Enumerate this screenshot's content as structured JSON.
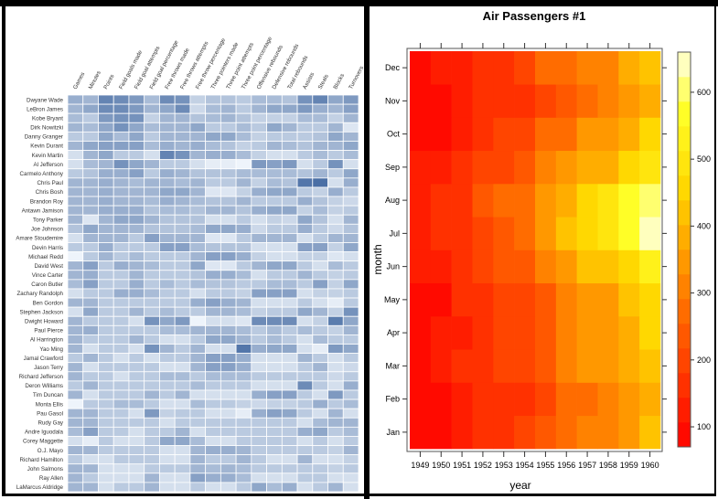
{
  "chart_data": [
    {
      "type": "heatmap",
      "title": "",
      "xlabel": "",
      "ylabel": "",
      "color_scale": {
        "low": "#f7fbff",
        "high": "#4a6fa5"
      },
      "value_range": [
        0,
        1
      ],
      "columns": [
        "Games",
        "Minutes",
        "Points",
        "Field goals made",
        "Field goal attempts",
        "Field goal percentage",
        "Free throws made",
        "Free throws attempts",
        "Free throw percentage",
        "Three pointers made",
        "Three point attempts",
        "Three point percentage",
        "Offensive rebounds",
        "Defensive rebounds",
        "Total rebounds",
        "Assists",
        "Steals",
        "Blocks",
        "Turnovers"
      ],
      "rows": [
        "Dwyane Wade",
        "LeBron James",
        "Kobe Bryant",
        "Dirk Nowitzki",
        "Danny Granger",
        "Kevin Durant",
        "Kevin Martin",
        "Al Jefferson",
        "Carmelo Anthony",
        "Chris Paul",
        "Chris Bosh",
        "Brandon Roy",
        "Antawn Jamison",
        "Tony Parker",
        "Joe Johnson",
        "Amare Stoudemire",
        "Devin Harris",
        "Michael Redd",
        "David West",
        "Vince Carter",
        "Caron Butler",
        "Zachary Randolph",
        "Ben Gordon",
        "Stephen Jackson",
        "Dwight Howard",
        "Paul Pierce",
        "Al Harrington",
        "Yao Ming",
        "Jamal Crawford",
        "Jason Terry",
        "Richard Jefferson",
        "Deron Williams",
        "Tim Duncan",
        "Monta Ellis",
        "Pau Gasol",
        "Rudy Gay",
        "Andre Iguodala",
        "Corey Maggette",
        "O.J. Mayo",
        "Richard Hamilton",
        "John Salmons",
        "Ray Allen",
        "LaMarcus Aldridge"
      ],
      "values": [
        [
          0.55,
          0.5,
          0.85,
          0.8,
          0.7,
          0.45,
          0.8,
          0.75,
          0.3,
          0.4,
          0.4,
          0.35,
          0.45,
          0.45,
          0.4,
          0.75,
          0.85,
          0.6,
          0.7
        ],
        [
          0.5,
          0.6,
          0.8,
          0.8,
          0.7,
          0.5,
          0.6,
          0.8,
          0.25,
          0.45,
          0.5,
          0.35,
          0.5,
          0.6,
          0.6,
          0.7,
          0.55,
          0.5,
          0.65
        ],
        [
          0.45,
          0.35,
          0.7,
          0.75,
          0.75,
          0.3,
          0.5,
          0.5,
          0.4,
          0.45,
          0.5,
          0.4,
          0.3,
          0.3,
          0.3,
          0.45,
          0.45,
          0.3,
          0.5
        ],
        [
          0.5,
          0.45,
          0.6,
          0.75,
          0.6,
          0.45,
          0.5,
          0.5,
          0.6,
          0.35,
          0.35,
          0.45,
          0.35,
          0.6,
          0.5,
          0.35,
          0.35,
          0.5,
          0.15
        ],
        [
          0.35,
          0.35,
          0.6,
          0.45,
          0.6,
          0.35,
          0.5,
          0.5,
          0.5,
          0.6,
          0.6,
          0.45,
          0.3,
          0.35,
          0.35,
          0.35,
          0.4,
          0.6,
          0.5
        ],
        [
          0.5,
          0.6,
          0.65,
          0.65,
          0.65,
          0.45,
          0.55,
          0.5,
          0.55,
          0.45,
          0.4,
          0.3,
          0.35,
          0.5,
          0.45,
          0.4,
          0.5,
          0.5,
          0.6
        ],
        [
          0.2,
          0.5,
          0.6,
          0.35,
          0.35,
          0.2,
          0.85,
          0.75,
          0.5,
          0.55,
          0.55,
          0.45,
          0.3,
          0.2,
          0.2,
          0.35,
          0.45,
          0.35,
          0.45
        ],
        [
          0.2,
          0.45,
          0.5,
          0.75,
          0.6,
          0.5,
          0.35,
          0.35,
          0.2,
          0.1,
          0.1,
          0.05,
          0.7,
          0.65,
          0.7,
          0.2,
          0.35,
          0.75,
          0.2
        ],
        [
          0.35,
          0.4,
          0.55,
          0.55,
          0.65,
          0.35,
          0.55,
          0.5,
          0.4,
          0.4,
          0.4,
          0.45,
          0.45,
          0.45,
          0.45,
          0.4,
          0.5,
          0.35,
          0.6
        ],
        [
          0.5,
          0.5,
          0.55,
          0.5,
          0.45,
          0.5,
          0.5,
          0.45,
          0.5,
          0.35,
          0.35,
          0.5,
          0.3,
          0.45,
          0.4,
          0.95,
          1.0,
          0.2,
          0.55
        ],
        [
          0.5,
          0.5,
          0.55,
          0.5,
          0.5,
          0.5,
          0.6,
          0.6,
          0.5,
          0.15,
          0.15,
          0.3,
          0.55,
          0.6,
          0.6,
          0.35,
          0.3,
          0.55,
          0.35
        ],
        [
          0.5,
          0.5,
          0.55,
          0.5,
          0.5,
          0.45,
          0.55,
          0.5,
          0.45,
          0.4,
          0.4,
          0.5,
          0.35,
          0.35,
          0.35,
          0.55,
          0.4,
          0.3,
          0.25
        ],
        [
          0.5,
          0.5,
          0.55,
          0.55,
          0.55,
          0.4,
          0.45,
          0.45,
          0.4,
          0.5,
          0.5,
          0.4,
          0.55,
          0.6,
          0.6,
          0.3,
          0.45,
          0.3,
          0.35
        ],
        [
          0.5,
          0.15,
          0.5,
          0.6,
          0.6,
          0.5,
          0.4,
          0.4,
          0.4,
          0.2,
          0.2,
          0.35,
          0.2,
          0.3,
          0.25,
          0.6,
          0.4,
          0.2,
          0.5
        ],
        [
          0.4,
          0.6,
          0.5,
          0.5,
          0.5,
          0.4,
          0.4,
          0.4,
          0.45,
          0.6,
          0.6,
          0.55,
          0.25,
          0.35,
          0.35,
          0.55,
          0.35,
          0.25,
          0.4
        ],
        [
          0.2,
          0.5,
          0.5,
          0.5,
          0.35,
          0.65,
          0.5,
          0.5,
          0.5,
          0.15,
          0.15,
          0.35,
          0.5,
          0.5,
          0.5,
          0.2,
          0.35,
          0.5,
          0.5
        ],
        [
          0.35,
          0.35,
          0.55,
          0.35,
          0.35,
          0.35,
          0.65,
          0.65,
          0.45,
          0.4,
          0.4,
          0.4,
          0.2,
          0.2,
          0.2,
          0.65,
          0.65,
          0.3,
          0.6
        ],
        [
          0.05,
          0.35,
          0.5,
          0.35,
          0.45,
          0.35,
          0.35,
          0.35,
          0.5,
          0.65,
          0.65,
          0.55,
          0.3,
          0.2,
          0.2,
          0.3,
          0.3,
          0.15,
          0.2
        ],
        [
          0.5,
          0.65,
          0.35,
          0.55,
          0.5,
          0.45,
          0.35,
          0.35,
          0.6,
          0.15,
          0.15,
          0.35,
          0.5,
          0.6,
          0.6,
          0.35,
          0.2,
          0.45,
          0.35
        ],
        [
          0.5,
          0.55,
          0.35,
          0.35,
          0.5,
          0.35,
          0.35,
          0.35,
          0.4,
          0.55,
          0.55,
          0.45,
          0.2,
          0.35,
          0.35,
          0.5,
          0.35,
          0.3,
          0.35
        ],
        [
          0.45,
          0.65,
          0.35,
          0.35,
          0.55,
          0.35,
          0.45,
          0.35,
          0.45,
          0.4,
          0.4,
          0.35,
          0.35,
          0.45,
          0.45,
          0.35,
          0.65,
          0.3,
          0.6
        ],
        [
          0.2,
          0.35,
          0.35,
          0.55,
          0.55,
          0.45,
          0.35,
          0.35,
          0.2,
          0.35,
          0.35,
          0.3,
          0.65,
          0.65,
          0.65,
          0.2,
          0.3,
          0.3,
          0.35
        ],
        [
          0.5,
          0.5,
          0.35,
          0.35,
          0.35,
          0.35,
          0.35,
          0.35,
          0.55,
          0.65,
          0.55,
          0.5,
          0.2,
          0.2,
          0.2,
          0.35,
          0.2,
          0.1,
          0.35
        ],
        [
          0.2,
          0.6,
          0.35,
          0.35,
          0.5,
          0.35,
          0.45,
          0.35,
          0.35,
          0.5,
          0.5,
          0.45,
          0.3,
          0.35,
          0.35,
          0.6,
          0.5,
          0.3,
          0.75
        ],
        [
          0.5,
          0.35,
          0.35,
          0.35,
          0.2,
          0.75,
          0.6,
          0.7,
          0.05,
          0.2,
          0.2,
          0.15,
          0.8,
          0.8,
          0.8,
          0.2,
          0.3,
          0.9,
          0.6
        ],
        [
          0.5,
          0.55,
          0.35,
          0.35,
          0.35,
          0.35,
          0.45,
          0.45,
          0.5,
          0.5,
          0.5,
          0.45,
          0.35,
          0.45,
          0.35,
          0.45,
          0.35,
          0.3,
          0.5
        ],
        [
          0.5,
          0.35,
          0.35,
          0.35,
          0.5,
          0.35,
          0.2,
          0.2,
          0.35,
          0.6,
          0.6,
          0.5,
          0.35,
          0.45,
          0.35,
          0.2,
          0.45,
          0.35,
          0.35
        ],
        [
          0.5,
          0.2,
          0.35,
          0.35,
          0.2,
          0.75,
          0.5,
          0.35,
          0.5,
          0.2,
          0.2,
          0.95,
          0.55,
          0.6,
          0.6,
          0.2,
          0.1,
          0.7,
          0.6
        ],
        [
          0.35,
          0.5,
          0.35,
          0.2,
          0.35,
          0.2,
          0.35,
          0.35,
          0.5,
          0.65,
          0.65,
          0.55,
          0.2,
          0.2,
          0.2,
          0.5,
          0.35,
          0.2,
          0.35
        ],
        [
          0.5,
          0.2,
          0.35,
          0.35,
          0.35,
          0.35,
          0.2,
          0.2,
          0.5,
          0.65,
          0.65,
          0.55,
          0.2,
          0.2,
          0.2,
          0.35,
          0.5,
          0.2,
          0.25
        ],
        [
          0.5,
          0.35,
          0.35,
          0.2,
          0.35,
          0.35,
          0.45,
          0.45,
          0.35,
          0.45,
          0.45,
          0.45,
          0.35,
          0.35,
          0.35,
          0.35,
          0.35,
          0.25,
          0.35
        ],
        [
          0.35,
          0.5,
          0.35,
          0.35,
          0.35,
          0.35,
          0.35,
          0.35,
          0.45,
          0.35,
          0.35,
          0.35,
          0.2,
          0.2,
          0.2,
          0.8,
          0.35,
          0.2,
          0.55
        ],
        [
          0.5,
          0.2,
          0.35,
          0.35,
          0.35,
          0.5,
          0.35,
          0.5,
          0.2,
          0.2,
          0.2,
          0.2,
          0.55,
          0.65,
          0.65,
          0.35,
          0.2,
          0.7,
          0.35
        ],
        [
          0.05,
          0.35,
          0.35,
          0.45,
          0.45,
          0.35,
          0.2,
          0.2,
          0.45,
          0.35,
          0.35,
          0.3,
          0.25,
          0.3,
          0.3,
          0.35,
          0.55,
          0.35,
          0.45
        ],
        [
          0.5,
          0.5,
          0.35,
          0.35,
          0.2,
          0.7,
          0.3,
          0.35,
          0.35,
          0.2,
          0.2,
          0.1,
          0.55,
          0.65,
          0.6,
          0.35,
          0.2,
          0.5,
          0.2
        ],
        [
          0.5,
          0.5,
          0.35,
          0.35,
          0.35,
          0.35,
          0.2,
          0.35,
          0.35,
          0.35,
          0.35,
          0.35,
          0.35,
          0.35,
          0.35,
          0.2,
          0.45,
          0.5,
          0.5
        ],
        [
          0.45,
          0.65,
          0.35,
          0.35,
          0.2,
          0.35,
          0.35,
          0.5,
          0.2,
          0.35,
          0.35,
          0.35,
          0.35,
          0.35,
          0.35,
          0.55,
          0.6,
          0.35,
          0.45
        ],
        [
          0.2,
          0.1,
          0.35,
          0.2,
          0.2,
          0.35,
          0.6,
          0.6,
          0.45,
          0.2,
          0.2,
          0.35,
          0.35,
          0.35,
          0.35,
          0.2,
          0.35,
          0.2,
          0.35
        ],
        [
          0.5,
          0.5,
          0.35,
          0.35,
          0.35,
          0.35,
          0.2,
          0.2,
          0.5,
          0.55,
          0.55,
          0.5,
          0.35,
          0.35,
          0.35,
          0.35,
          0.35,
          0.3,
          0.5
        ],
        [
          0.35,
          0.2,
          0.2,
          0.35,
          0.35,
          0.35,
          0.2,
          0.2,
          0.5,
          0.35,
          0.35,
          0.5,
          0.35,
          0.2,
          0.2,
          0.5,
          0.2,
          0.2,
          0.3
        ],
        [
          0.5,
          0.5,
          0.2,
          0.2,
          0.2,
          0.35,
          0.35,
          0.35,
          0.5,
          0.45,
          0.5,
          0.45,
          0.35,
          0.35,
          0.35,
          0.35,
          0.35,
          0.3,
          0.35
        ],
        [
          0.5,
          0.35,
          0.2,
          0.2,
          0.2,
          0.5,
          0.2,
          0.2,
          0.65,
          0.55,
          0.55,
          0.45,
          0.2,
          0.2,
          0.2,
          0.35,
          0.35,
          0.2,
          0.2
        ],
        [
          0.5,
          0.5,
          0.2,
          0.35,
          0.35,
          0.5,
          0.2,
          0.2,
          0.35,
          0.2,
          0.2,
          0.35,
          0.6,
          0.45,
          0.55,
          0.2,
          0.35,
          0.5,
          0.2
        ]
      ]
    },
    {
      "type": "heatmap",
      "title": "Air Passengers #1",
      "xlabel": "year",
      "ylabel": "month",
      "x": [
        "1949",
        "1950",
        "1951",
        "1952",
        "1953",
        "1954",
        "1955",
        "1956",
        "1957",
        "1958",
        "1959",
        "1960"
      ],
      "y": [
        "Jan",
        "Feb",
        "Mar",
        "Apr",
        "May",
        "Jun",
        "Jul",
        "Aug",
        "Sep",
        "Oct",
        "Nov",
        "Dec"
      ],
      "colorbar": {
        "ticks": [
          100,
          200,
          300,
          400,
          500,
          600
        ],
        "range": [
          100,
          650
        ],
        "palette": "heat"
      },
      "values": [
        [
          112,
          115,
          145,
          171,
          196,
          204,
          242,
          284,
          315,
          340,
          360,
          417
        ],
        [
          118,
          126,
          150,
          180,
          196,
          188,
          233,
          277,
          301,
          318,
          342,
          391
        ],
        [
          132,
          141,
          178,
          193,
          236,
          235,
          267,
          317,
          356,
          362,
          406,
          419
        ],
        [
          129,
          135,
          163,
          181,
          235,
          227,
          269,
          313,
          348,
          348,
          396,
          461
        ],
        [
          121,
          125,
          172,
          183,
          229,
          234,
          270,
          318,
          355,
          363,
          420,
          472
        ],
        [
          135,
          149,
          178,
          218,
          243,
          264,
          315,
          374,
          422,
          435,
          472,
          535
        ],
        [
          148,
          170,
          199,
          230,
          264,
          302,
          364,
          413,
          465,
          491,
          548,
          622
        ],
        [
          148,
          170,
          199,
          242,
          272,
          293,
          347,
          405,
          467,
          505,
          559,
          606
        ],
        [
          136,
          158,
          184,
          209,
          237,
          259,
          312,
          355,
          404,
          404,
          463,
          508
        ],
        [
          119,
          133,
          162,
          191,
          211,
          229,
          274,
          306,
          347,
          359,
          407,
          461
        ],
        [
          104,
          114,
          146,
          172,
          180,
          203,
          237,
          271,
          305,
          310,
          362,
          390
        ],
        [
          118,
          140,
          166,
          194,
          201,
          229,
          278,
          306,
          336,
          337,
          405,
          432
        ]
      ]
    }
  ]
}
